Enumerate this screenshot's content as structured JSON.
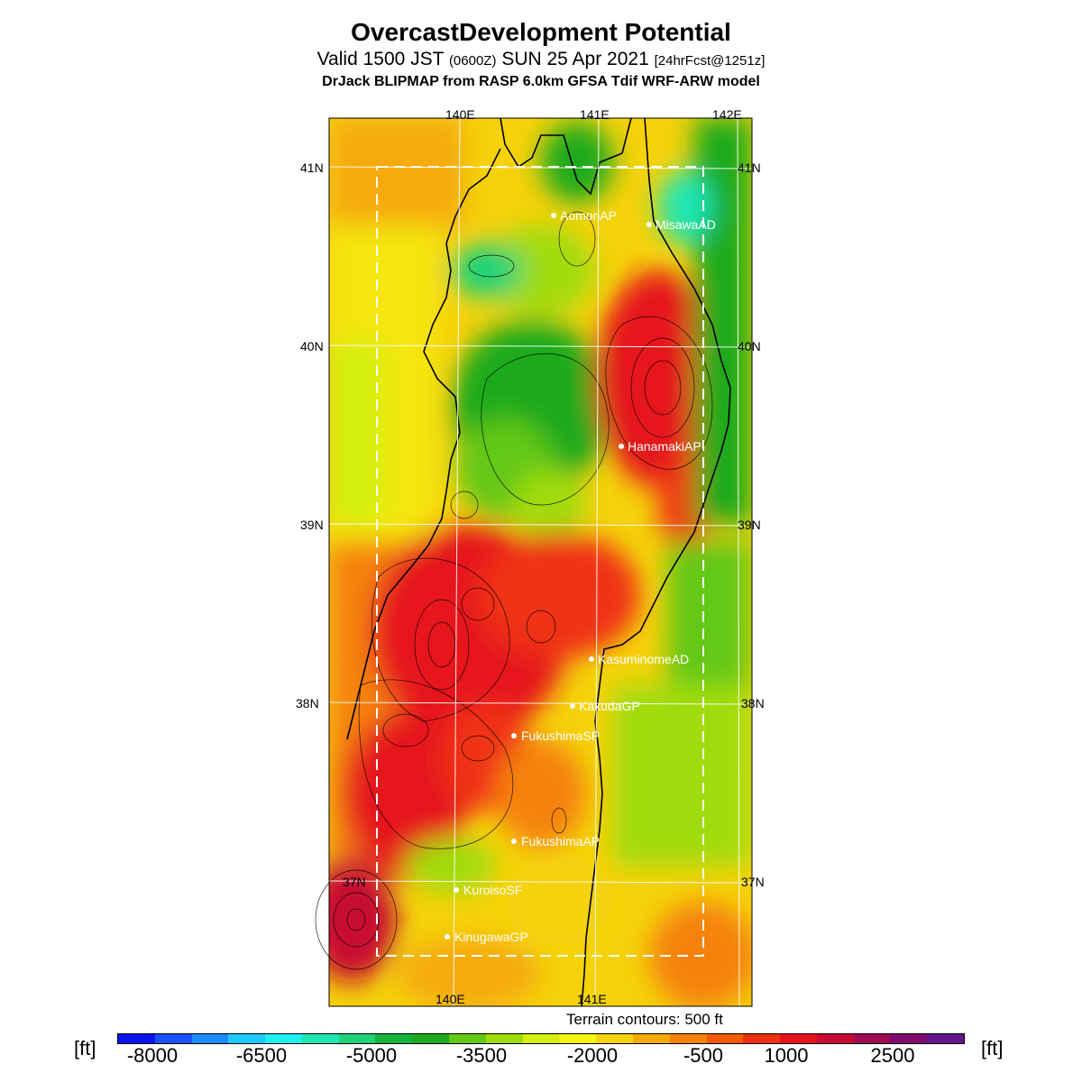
{
  "header": {
    "title": "OvercastDevelopment Potential",
    "valid_prefix": "Valid 1500 JST",
    "valid_utc": "(0600Z)",
    "valid_date": "SUN 25 Apr 2021",
    "forecast": "[24hrFcst@1251z]",
    "model": "DrJack BLIPMAP from RASP 6.0km GFSA Tdif WRF-ARW model"
  },
  "map": {
    "lon_labels_top": [
      "140E",
      "141E",
      "142E"
    ],
    "lon_labels_bottom": [
      "140E",
      "141E"
    ],
    "lat_labels": [
      "41N",
      "40N",
      "39N",
      "38N",
      "37N"
    ],
    "stations": [
      {
        "name": "AomoriAP"
      },
      {
        "name": "MisawaAD"
      },
      {
        "name": "HanamakiAP"
      },
      {
        "name": "KasuminomeAD"
      },
      {
        "name": "KakudaGP"
      },
      {
        "name": "FukushimaSP"
      },
      {
        "name": "FukushimaAP"
      },
      {
        "name": "KuroisoSF"
      },
      {
        "name": "KinugawaGP"
      }
    ]
  },
  "terrain_note": "Terrain contours: 500 ft",
  "colorbar": {
    "unit": "[ft]",
    "tick_labels": [
      "-8000",
      "-6500",
      "-5000",
      "-3500",
      "-2000",
      "-500",
      "1000",
      "2500"
    ],
    "colors": [
      "#0a14f0",
      "#1e50ff",
      "#1e8cff",
      "#1ec8ff",
      "#1ef0f0",
      "#1ee6b4",
      "#1ed278",
      "#14b43c",
      "#1eaa1e",
      "#64c814",
      "#a0dc0a",
      "#d2f00a",
      "#f5f50a",
      "#f5d20a",
      "#f5aa0a",
      "#f5820a",
      "#f55a0a",
      "#f03214",
      "#e6141e",
      "#c80a32",
      "#a00a50",
      "#820a6e",
      "#64148c"
    ]
  }
}
